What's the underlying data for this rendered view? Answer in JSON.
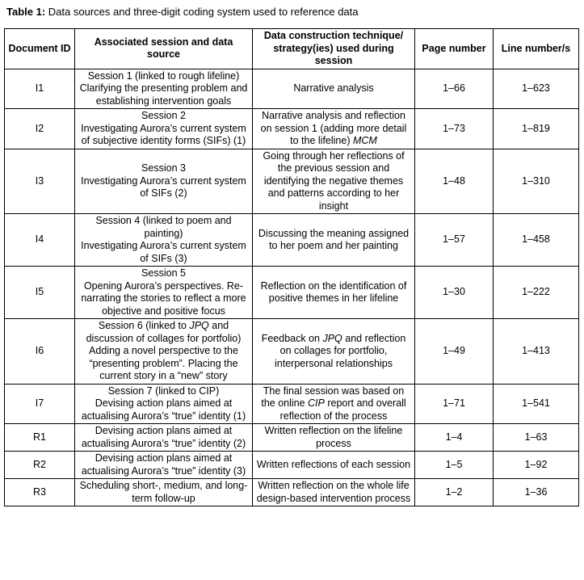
{
  "title": {
    "label": "Table 1:",
    "text": " Data sources and three-digit coding system used to reference data"
  },
  "table": {
    "columns": [
      "Document ID",
      "Associated session and data source",
      "Data construction technique/ strategy(ies) used during session",
      "Page number",
      "Line number/s"
    ],
    "rows": [
      {
        "id": "I1",
        "session": [
          [
            {
              "text": "Session 1 (linked to rough lifeline)"
            }
          ],
          [
            {
              "text": "Clarifying the presenting problem and establishing intervention goals"
            }
          ]
        ],
        "technique": [
          [
            {
              "text": "Narrative analysis"
            }
          ]
        ],
        "page": "1–66",
        "lines": "1–623"
      },
      {
        "id": "I2",
        "session": [
          [
            {
              "text": "Session 2"
            }
          ],
          [
            {
              "text": "Investigating Aurora’s current system of subjective identity forms (SIFs) (1)"
            }
          ]
        ],
        "technique": [
          [
            {
              "text": "Narrative analysis and reflection on session 1 (adding more detail to the lifeline) "
            },
            {
              "text": "MCM",
              "italic": true
            }
          ]
        ],
        "page": "1–73",
        "lines": "1–819"
      },
      {
        "id": "I3",
        "session": [
          [
            {
              "text": "Session 3"
            }
          ],
          [
            {
              "text": "Investigating Aurora’s current system of SIFs (2)"
            }
          ]
        ],
        "technique": [
          [
            {
              "text": "Going through her reflections of the previous session and identifying the negative themes and patterns according to her insight"
            }
          ]
        ],
        "page": "1–48",
        "lines": "1–310"
      },
      {
        "id": "I4",
        "session": [
          [
            {
              "text": "Session 4 (linked to poem and painting)"
            }
          ],
          [
            {
              "text": "Investigating Aurora’s current system of SIFs (3)"
            }
          ]
        ],
        "technique": [
          [
            {
              "text": "Discussing the meaning assigned to her poem and her painting"
            }
          ]
        ],
        "page": "1–57",
        "lines": "1–458"
      },
      {
        "id": "I5",
        "session": [
          [
            {
              "text": "Session 5"
            }
          ],
          [
            {
              "text": "Opening Aurora’s perspectives. Re-narrating the stories to reflect a more objective and positive focus"
            }
          ]
        ],
        "technique": [
          [
            {
              "text": "Reflection on the identification of positive themes in her lifeline"
            }
          ]
        ],
        "page": "1–30",
        "lines": "1–222"
      },
      {
        "id": "I6",
        "session": [
          [
            {
              "text": "Session 6 (linked to "
            },
            {
              "text": "JPQ",
              "italic": true
            },
            {
              "text": " and discussion of collages for portfolio)"
            }
          ],
          [
            {
              "text": "Adding a novel perspective to the “presenting problem”. Placing the current story in a “new” story"
            }
          ]
        ],
        "technique": [
          [
            {
              "text": "Feedback on "
            },
            {
              "text": "JPQ",
              "italic": true
            },
            {
              "text": " and reflection on collages for portfolio, interpersonal relationships"
            }
          ]
        ],
        "page": "1–49",
        "lines": "1–413"
      },
      {
        "id": "I7",
        "session": [
          [
            {
              "text": "Session 7 (linked to CIP)"
            }
          ],
          [
            {
              "text": "Devising action plans aimed at actualising Aurora’s “true” identity (1)"
            }
          ]
        ],
        "technique": [
          [
            {
              "text": "The final session was based on the online "
            },
            {
              "text": "CIP",
              "italic": true
            },
            {
              "text": " report and overall reflection of the process"
            }
          ]
        ],
        "page": "1–71",
        "lines": "1–541"
      },
      {
        "id": "R1",
        "session": [
          [
            {
              "text": "Devising action plans aimed at actualising Aurora’s “true” identity (2)"
            }
          ]
        ],
        "technique": [
          [
            {
              "text": "Written reflection on the lifeline process"
            }
          ]
        ],
        "page": "1–4",
        "lines": "1–63"
      },
      {
        "id": "R2",
        "session": [
          [
            {
              "text": "Devising action plans aimed at actualising Aurora’s “true” identity (3)"
            }
          ]
        ],
        "technique": [
          [
            {
              "text": "Written reflections of each session"
            }
          ]
        ],
        "page": "1–5",
        "lines": "1–92"
      },
      {
        "id": "R3",
        "session": [
          [
            {
              "text": "Scheduling short-, medium, and long-term follow-up"
            }
          ]
        ],
        "technique": [
          [
            {
              "text": "Written reflection on the whole life design-based intervention process"
            }
          ]
        ],
        "page": "1–2",
        "lines": "1–36"
      }
    ]
  }
}
